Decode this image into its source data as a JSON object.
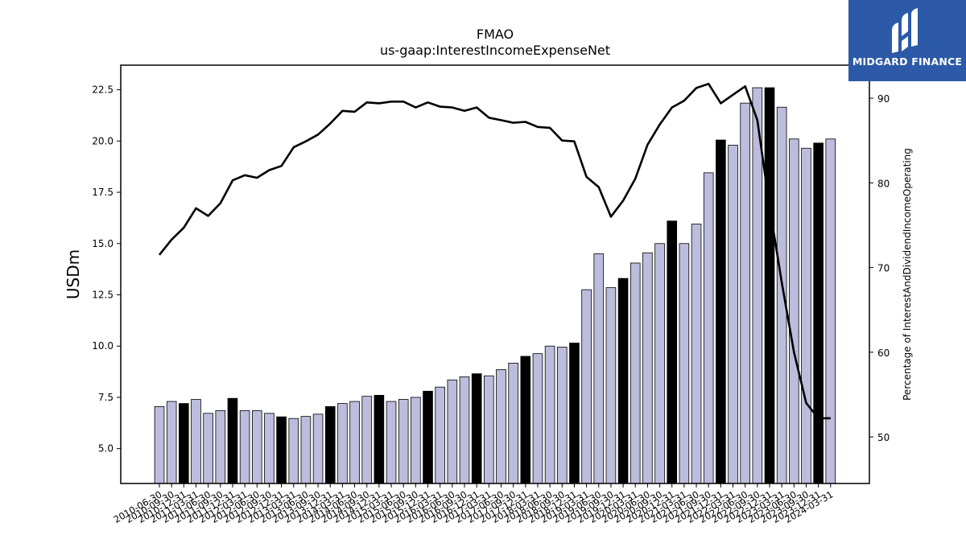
{
  "chart_data": {
    "type": "bar",
    "title": "FMAO",
    "subtitle": "us-gaap:InterestIncomeExpenseNet",
    "ylabel": "USDm",
    "y2label": "Percentage of InterestAndDividendIncomeOperating",
    "ylim": [
      3.3,
      23.7
    ],
    "y2lim": [
      44.5,
      93.9
    ],
    "yticks": [
      "5.0",
      "7.5",
      "10.0",
      "12.5",
      "15.0",
      "17.5",
      "20.0",
      "22.5"
    ],
    "y2ticks": [
      "50",
      "60",
      "70",
      "80",
      "90"
    ],
    "grid": false,
    "bar_colors": {
      "quarter": "#bcbcdc",
      "annual": "#000000"
    },
    "line_color": "#000000",
    "categories": [
      "2010-06-30",
      "2010-09-30",
      "2010-12-31",
      "2011-03-31",
      "2011-06-30",
      "2011-09-30",
      "2011-12-31",
      "2012-03-31",
      "2012-06-30",
      "2012-09-30",
      "2012-12-31",
      "2013-03-31",
      "2013-06-30",
      "2013-09-30",
      "2013-12-31",
      "2014-03-31",
      "2014-06-30",
      "2014-09-30",
      "2014-12-31",
      "2015-03-31",
      "2015-06-30",
      "2015-09-30",
      "2015-12-31",
      "2016-03-31",
      "2016-06-30",
      "2016-09-30",
      "2016-12-31",
      "2017-03-31",
      "2017-06-30",
      "2017-09-30",
      "2017-12-31",
      "2018-03-31",
      "2018-06-30",
      "2018-09-30",
      "2018-12-31",
      "2019-03-31",
      "2019-06-30",
      "2019-09-30",
      "2019-12-31",
      "2020-03-31",
      "2020-06-30",
      "2020-09-30",
      "2020-12-31",
      "2021-03-31",
      "2021-06-30",
      "2021-09-30",
      "2021-12-31",
      "2022-03-31",
      "2022-06-30",
      "2022-09-30",
      "2022-12-31",
      "2023-03-31",
      "2023-06-30",
      "2023-09-30",
      "2023-12-31",
      "2024-03-31"
    ],
    "xticks_shown": [
      "2010-06-30",
      "2010-09-30",
      "2010-12-31",
      "2011-03-31",
      "2011-06-30",
      "2011-09-30",
      "2011-12-31",
      "2012-03-31",
      "2012-06-30",
      "2012-09-30",
      "2012-12-31",
      "2013-03-31",
      "2013-06-30",
      "2013-09-30",
      "2013-12-31",
      "2014-03-31",
      "2014-06-30",
      "2014-09-30",
      "2014-12-31",
      "2015-03-31",
      "2015-06-30",
      "2015-09-30",
      "2015-12-31",
      "2016-03-31",
      "2016-06-30",
      "2016-09-30",
      "2016-12-31",
      "2017-03-31",
      "2017-06-30",
      "2017-09-30",
      "2017-12-31",
      "2018-03-31",
      "2018-06-30",
      "2018-09-30",
      "2018-12-31",
      "2019-03-31",
      "2019-06-30",
      "2019-09-30",
      "2019-12-31",
      "2020-03-31",
      "2020-06-30",
      "2020-09-30",
      "2020-12-31",
      "2021-03-31",
      "2021-06-30",
      "2021-09-30",
      "2021-12-31",
      "2022-03-31",
      "2022-06-30",
      "2022-09-30",
      "2022-12-31",
      "2023-03-31",
      "2023-06-30",
      "2023-09-30",
      "2023-12-31",
      "2024-03-31"
    ],
    "series": [
      {
        "kind": "bar",
        "values": [
          7.05,
          7.3,
          7.2,
          7.4,
          6.72,
          6.85,
          7.45,
          6.85,
          6.85,
          6.72,
          6.55,
          6.47,
          6.57,
          6.68,
          7.05,
          7.2,
          7.3,
          7.55,
          7.6,
          7.3,
          7.4,
          7.5,
          7.8,
          8.0,
          8.35,
          8.5,
          8.65,
          8.55,
          8.85,
          9.17,
          9.5,
          9.63,
          10.0,
          9.95,
          10.15,
          12.75,
          14.5,
          12.85,
          13.3,
          14.05,
          14.55,
          15.0,
          16.1,
          15.0,
          15.95,
          18.45,
          20.05,
          19.8,
          21.85,
          22.6,
          22.6,
          21.65,
          20.1,
          19.65,
          19.9,
          20.1
        ],
        "annual": [
          false,
          false,
          true,
          false,
          false,
          false,
          true,
          false,
          false,
          false,
          true,
          false,
          false,
          false,
          true,
          false,
          false,
          false,
          true,
          false,
          false,
          false,
          true,
          false,
          false,
          false,
          true,
          false,
          false,
          false,
          true,
          false,
          false,
          false,
          true,
          false,
          false,
          false,
          true,
          false,
          false,
          false,
          true,
          false,
          false,
          false,
          true,
          false,
          false,
          false,
          true,
          false,
          false,
          false,
          true,
          false
        ]
      },
      {
        "kind": "line",
        "axis": "right",
        "values": [
          71.5,
          73.3,
          74.7,
          77.0,
          76.1,
          77.6,
          80.3,
          80.9,
          80.6,
          81.5,
          82.0,
          84.2,
          84.9,
          85.7,
          87.0,
          88.5,
          88.4,
          89.5,
          89.4,
          89.6,
          89.6,
          88.9,
          89.5,
          89.0,
          88.9,
          88.5,
          88.9,
          87.7,
          87.4,
          87.1,
          87.2,
          86.6,
          86.5,
          85.0,
          84.9,
          80.7,
          79.5,
          76.0,
          77.9,
          80.5,
          84.5,
          86.9,
          88.9,
          89.7,
          91.2,
          91.7,
          89.4,
          90.4,
          91.4,
          87.4,
          77.2,
          68.2,
          60.0,
          54.0,
          52.2,
          52.2
        ]
      }
    ]
  },
  "logo": {
    "text": "MIDGARD FINANCE"
  }
}
